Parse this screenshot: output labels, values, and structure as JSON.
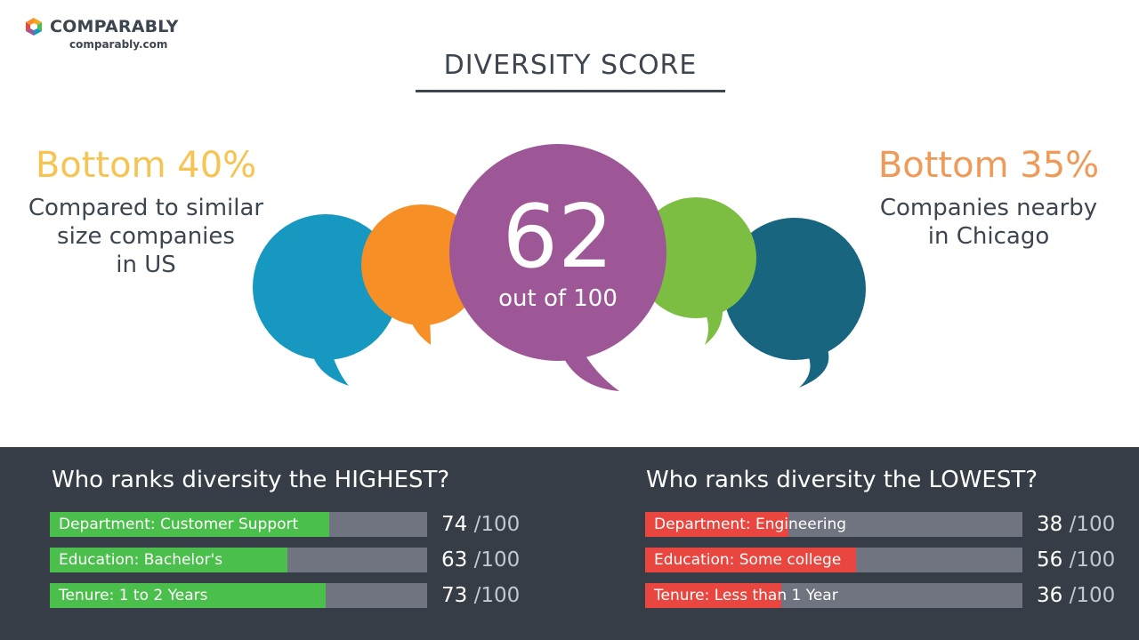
{
  "brand": {
    "name": "COMPARABLY",
    "url": "comparably.com",
    "icon": "comparably-logo-icon"
  },
  "title": "DIVERSITY SCORE",
  "left_stat": {
    "value": "Bottom 40%",
    "description_lines": [
      "Compared to similar",
      "size companies",
      "in US"
    ],
    "color": "#f6c451"
  },
  "right_stat": {
    "value": "Bottom 35%",
    "description_lines": [
      "Companies nearby",
      "in Chicago"
    ],
    "color": "#ee9a58"
  },
  "score": {
    "value": "62",
    "sub": "out of 100",
    "value_num": 62
  },
  "bubble_colors": [
    "#1698c0",
    "#f68f25",
    "#9d5797",
    "#7bbe42",
    "#186580"
  ],
  "highest": {
    "title": "Who ranks diversity the HIGHEST?",
    "color": "#4bbf4b",
    "items": [
      {
        "label": "Department: Customer Support",
        "score": "74",
        "max": "/100",
        "value": 74
      },
      {
        "label": "Education: Bachelor's",
        "score": "63",
        "max": "/100",
        "value": 63
      },
      {
        "label": "Tenure: 1 to 2 Years",
        "score": "73",
        "max": "/100",
        "value": 73
      }
    ]
  },
  "lowest": {
    "title": "Who ranks diversity the LOWEST?",
    "color": "#e8463f",
    "items": [
      {
        "label": "Department: Engineering",
        "score": "38",
        "max": "/100",
        "value": 38
      },
      {
        "label": "Education: Some college",
        "score": "56",
        "max": "/100",
        "value": 56
      },
      {
        "label": "Tenure: Less than 1 Year",
        "score": "36",
        "max": "/100",
        "value": 36
      }
    ]
  }
}
